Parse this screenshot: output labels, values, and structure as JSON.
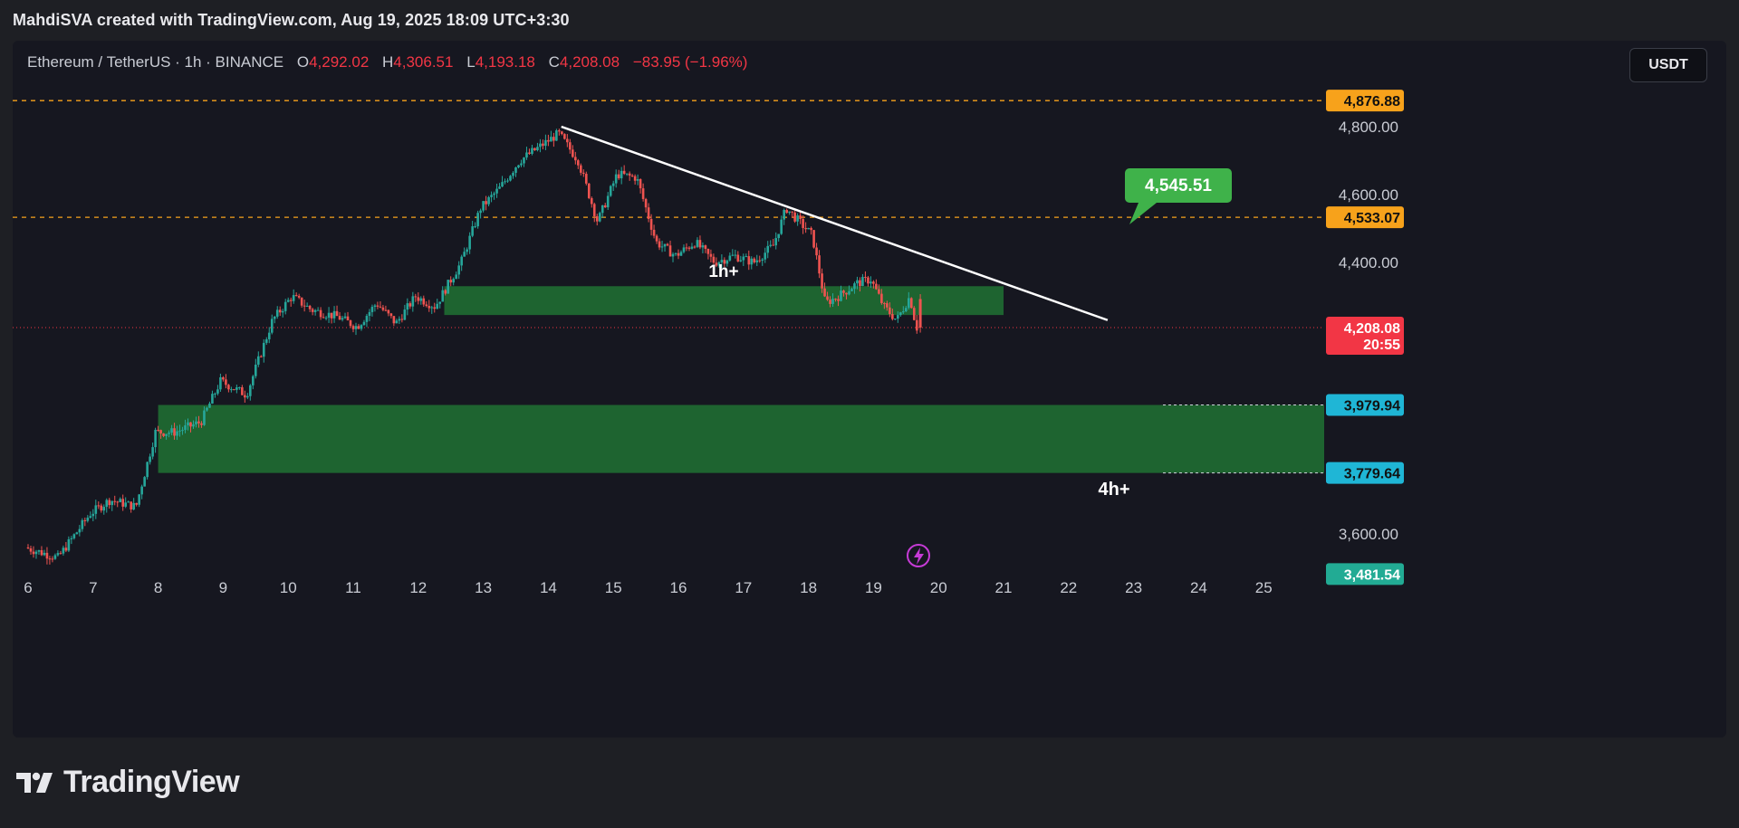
{
  "header": {
    "attribution": "MahdiSVA created with TradingView.com, Aug 19, 2025 18:09 UTC+3:30"
  },
  "legend": {
    "symbol": "Ethereum / TetherUS · 1h · BINANCE",
    "open_label": "O",
    "open": "4,292.02",
    "high_label": "H",
    "high": "4,306.51",
    "low_label": "L",
    "low": "4,193.18",
    "close_label": "C",
    "close": "4,208.08",
    "change": "−83.95 (−1.96%)"
  },
  "currency_button": "USDT",
  "brand": {
    "name": "TradingView"
  },
  "colors": {
    "up": "#26a69a",
    "down": "#ef5350",
    "orange": "#f7a21b",
    "red_tag": "#f23645",
    "cyan_tag": "#1fb6d6",
    "teal_tag": "#22ab94",
    "green_zone": "#1f6b32",
    "bubble": "#3fb24a"
  },
  "chart_data": {
    "type": "candlestick",
    "symbol": "ETHUSDT",
    "timeframe": "1h",
    "ylim": [
      3400,
      4960
    ],
    "y_ticks": [
      "4,800.00",
      "4,600.00",
      "4,400.00",
      "3,600.00"
    ],
    "x_ticks": [
      "6",
      "7",
      "8",
      "9",
      "10",
      "11",
      "12",
      "13",
      "14",
      "15",
      "16",
      "17",
      "18",
      "19",
      "20",
      "21",
      "22",
      "23",
      "24",
      "25"
    ],
    "price_path": [
      [
        6.0,
        3560
      ],
      [
        6.5,
        3530
      ],
      [
        7.0,
        3660
      ],
      [
        7.3,
        3700
      ],
      [
        7.7,
        3680
      ],
      [
        8.0,
        3900
      ],
      [
        8.3,
        3900
      ],
      [
        8.7,
        3930
      ],
      [
        9.0,
        4050
      ],
      [
        9.4,
        4010
      ],
      [
        9.8,
        4230
      ],
      [
        10.1,
        4300
      ],
      [
        10.4,
        4260
      ],
      [
        10.8,
        4240
      ],
      [
        11.1,
        4210
      ],
      [
        11.4,
        4280
      ],
      [
        11.7,
        4220
      ],
      [
        12.0,
        4300
      ],
      [
        12.3,
        4270
      ],
      [
        12.7,
        4400
      ],
      [
        13.0,
        4560
      ],
      [
        13.3,
        4620
      ],
      [
        13.6,
        4700
      ],
      [
        13.9,
        4740
      ],
      [
        14.2,
        4780
      ],
      [
        14.5,
        4700
      ],
      [
        14.8,
        4520
      ],
      [
        15.1,
        4660
      ],
      [
        15.4,
        4650
      ],
      [
        15.7,
        4460
      ],
      [
        16.0,
        4420
      ],
      [
        16.3,
        4460
      ],
      [
        16.6,
        4400
      ],
      [
        16.9,
        4420
      ],
      [
        17.2,
        4400
      ],
      [
        17.5,
        4450
      ],
      [
        17.7,
        4560
      ],
      [
        17.9,
        4520
      ],
      [
        18.1,
        4480
      ],
      [
        18.3,
        4280
      ],
      [
        18.5,
        4300
      ],
      [
        18.8,
        4340
      ],
      [
        19.0,
        4350
      ],
      [
        19.2,
        4270
      ],
      [
        19.4,
        4230
      ],
      [
        19.6,
        4300
      ],
      [
        19.7,
        4208
      ]
    ],
    "last_candle": {
      "open": 4292.02,
      "high": 4306.51,
      "low": 4193.18,
      "close": 4208.08,
      "change": -83.95,
      "change_pct": -1.96
    },
    "horizontal_levels": [
      {
        "price": 4876.88,
        "label": "4,876.88",
        "style": "dashed",
        "color": "#f7a21b"
      },
      {
        "price": 4533.07,
        "label": "4,533.07",
        "style": "dashed",
        "color": "#f7a21b"
      }
    ],
    "current_price": {
      "label": "4,208.08",
      "countdown": "20:55"
    },
    "zones": [
      {
        "label": "1h+",
        "x_from": 12.4,
        "x_to": 21.0,
        "y_from": 4245,
        "y_to": 4330
      },
      {
        "label": "4h+",
        "x_from": 8.0,
        "x_to": 26.0,
        "y_from": 3779.64,
        "y_to": 3979.94,
        "top_label": "3,979.94",
        "bottom_label": "3,779.64"
      }
    ],
    "trendline": {
      "from": [
        14.2,
        4800
      ],
      "to": [
        22.6,
        4230
      ]
    },
    "target_bubble": {
      "label": "4,545.51",
      "price": 4545.51
    },
    "axis_tag_3481": "3,481.54"
  }
}
